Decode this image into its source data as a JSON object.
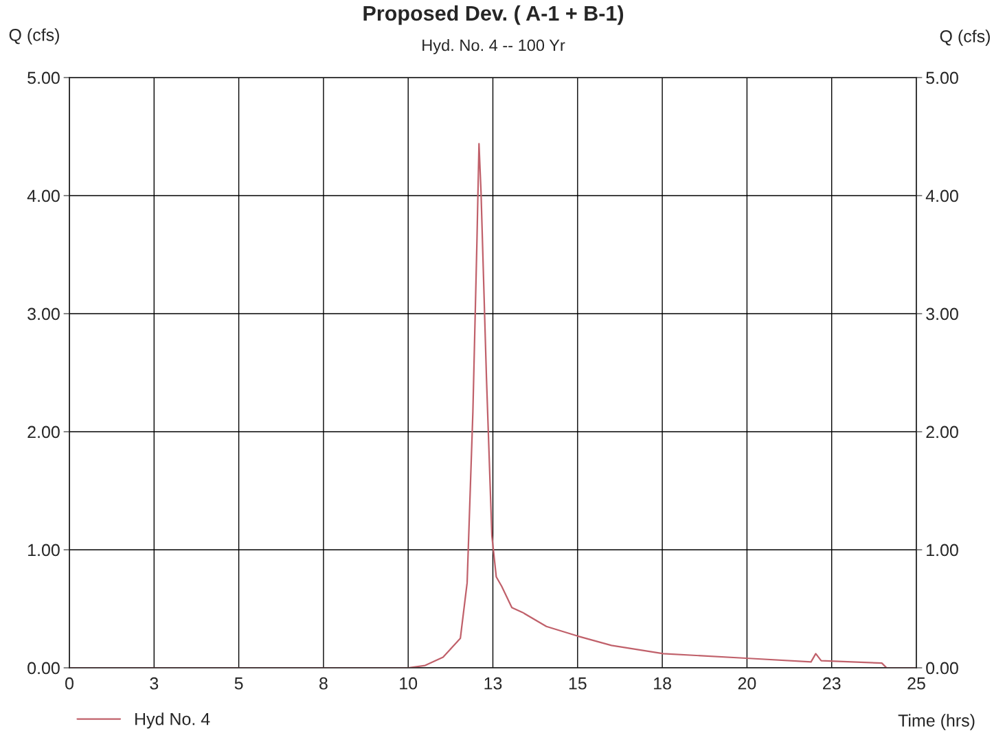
{
  "chart_data": {
    "type": "line",
    "title": "Proposed Dev. ( A-1 + B-1)",
    "subtitle": "Hyd. No. 4 -- 100 Yr",
    "xlabel": "Time (hrs)",
    "ylabel": "Q (cfs)",
    "y2label": "Q (cfs)",
    "series": [
      {
        "name": "Hyd No. 4",
        "color": "#c0606a",
        "x": [
          0,
          10.0,
          10.5,
          11.03,
          11.54,
          11.74,
          11.91,
          12.03,
          12.09,
          12.15,
          12.31,
          12.47,
          12.6,
          12.76,
          13.06,
          13.37,
          14.08,
          14.99,
          16.0,
          17.53,
          20.06,
          21.89,
          22.03,
          22.19,
          23.98,
          24.12,
          25
        ],
        "values": [
          0,
          0,
          0.02,
          0.09,
          0.25,
          0.72,
          2.17,
          3.62,
          4.44,
          4.03,
          2.46,
          1.12,
          0.77,
          0.69,
          0.51,
          0.47,
          0.35,
          0.27,
          0.19,
          0.12,
          0.08,
          0.05,
          0.12,
          0.06,
          0.04,
          0,
          0
        ]
      }
    ],
    "xlim": [
      0,
      25
    ],
    "xticks": [
      0,
      {
        "value": 2.5,
        "label": "3"
      },
      5,
      {
        "value": 7.5,
        "label": "8"
      },
      10,
      {
        "value": 12.5,
        "label": "13"
      },
      15,
      {
        "value": 17.5,
        "label": "18"
      },
      20,
      {
        "value": 22.5,
        "label": "23"
      },
      25
    ],
    "ylim": [
      0,
      5
    ],
    "yticks": [
      {
        "value": 0,
        "label": "0.00"
      },
      {
        "value": 1,
        "label": "1.00"
      },
      {
        "value": 2,
        "label": "2.00"
      },
      {
        "value": 3,
        "label": "3.00"
      },
      {
        "value": 4,
        "label": "4.00"
      },
      {
        "value": 5,
        "label": "5.00"
      }
    ],
    "y2lim": [
      0,
      5
    ],
    "y2ticks": [
      {
        "value": 0,
        "label": "0.00"
      },
      {
        "value": 1,
        "label": "1.00"
      },
      {
        "value": 2,
        "label": "2.00"
      },
      {
        "value": 3,
        "label": "3.00"
      },
      {
        "value": 4,
        "label": "4.00"
      },
      {
        "value": 5,
        "label": "5.00"
      }
    ],
    "grid": true,
    "legend": "bottom left",
    "marker": "none",
    "line_style": "solid"
  }
}
